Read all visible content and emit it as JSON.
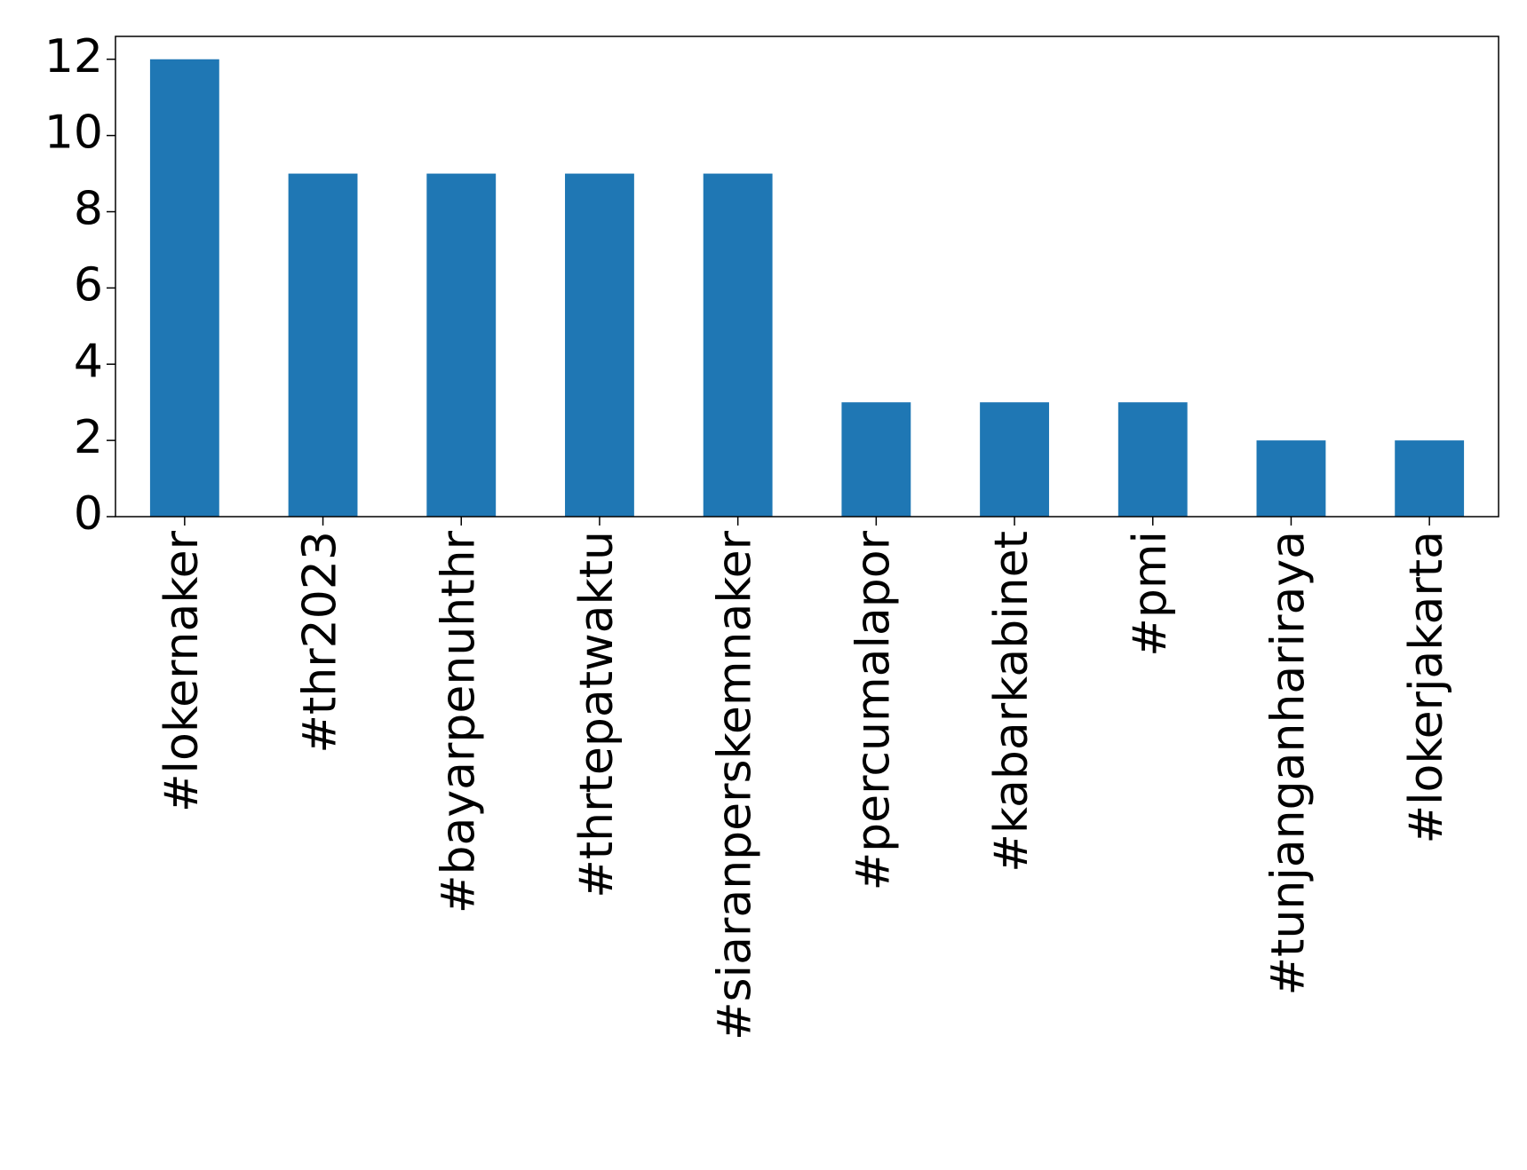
{
  "chart_data": {
    "type": "bar",
    "categories": [
      "#lokernaker",
      "#thr2023",
      "#bayarpenuhthr",
      "#thrtepatwaktu",
      "#siaranperskemnaker",
      "#percumalapor",
      "#kabarkabinet",
      "#pmi",
      "#tunjanganhariraya",
      "#lokerjakarta"
    ],
    "values": [
      12,
      9,
      9,
      9,
      9,
      3,
      3,
      3,
      2,
      2
    ],
    "color": "#1f77b4",
    "ylim": [
      0,
      12.6
    ],
    "yticks": [
      0,
      2,
      4,
      6,
      8,
      10,
      12
    ],
    "grid": false
  }
}
